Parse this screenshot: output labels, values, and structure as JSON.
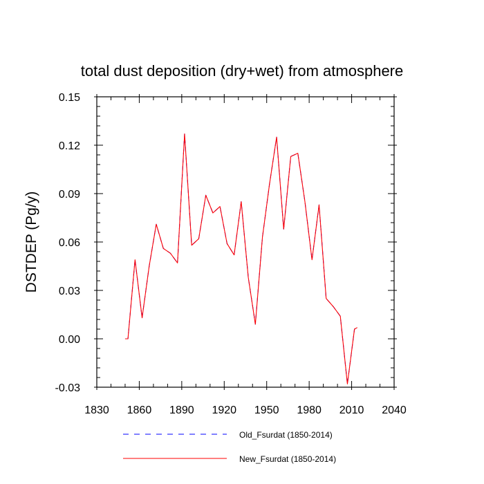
{
  "chart_data": {
    "type": "line",
    "title": "total dust deposition (dry+wet) from atmosphere",
    "xlabel": "",
    "ylabel": "DSTDEP   (Pg/y)",
    "xlim": [
      1830,
      2040
    ],
    "ylim": [
      -0.03,
      0.15
    ],
    "xticks": [
      1830,
      1860,
      1890,
      1920,
      1950,
      1980,
      2010,
      2040
    ],
    "xtick_labels": [
      "1830",
      "1860",
      "1890",
      "1920",
      "1950",
      "1980",
      "2010",
      "2040"
    ],
    "yticks": [
      -0.03,
      0.0,
      0.03,
      0.06,
      0.09,
      0.12,
      0.15
    ],
    "ytick_labels": [
      "-0.03",
      "0.00",
      "0.03",
      "0.06",
      "0.09",
      "0.12",
      "0.15"
    ],
    "x": [
      1850,
      1852,
      1857,
      1862,
      1867,
      1872,
      1877,
      1882,
      1887,
      1892,
      1897,
      1902,
      1907,
      1912,
      1917,
      1922,
      1927,
      1932,
      1937,
      1942,
      1947,
      1952,
      1957,
      1962,
      1967,
      1972,
      1977,
      1982,
      1987,
      1992,
      1997,
      2002,
      2007,
      2012,
      2014
    ],
    "series": [
      {
        "name": "Old_Fsurdat (1850-2014)",
        "color": "#0000ff",
        "dash": "dashed",
        "values": [
          0.0,
          0.0,
          0.049,
          0.013,
          0.045,
          0.071,
          0.056,
          0.053,
          0.047,
          0.127,
          0.058,
          0.062,
          0.089,
          0.078,
          0.082,
          0.059,
          0.052,
          0.085,
          0.038,
          0.009,
          0.063,
          0.096,
          0.125,
          0.068,
          0.113,
          0.115,
          0.085,
          0.049,
          0.083,
          0.025,
          0.02,
          0.014,
          -0.028,
          0.006,
          0.007
        ]
      },
      {
        "name": "New_Fsurdat (1850-2014)",
        "color": "#ff0000",
        "dash": "solid",
        "values": [
          0.0,
          0.0,
          0.049,
          0.013,
          0.045,
          0.071,
          0.056,
          0.053,
          0.047,
          0.127,
          0.058,
          0.062,
          0.089,
          0.078,
          0.082,
          0.059,
          0.052,
          0.085,
          0.038,
          0.009,
          0.063,
          0.096,
          0.125,
          0.068,
          0.113,
          0.115,
          0.085,
          0.049,
          0.083,
          0.025,
          0.02,
          0.014,
          -0.028,
          0.006,
          0.007
        ]
      }
    ],
    "legend_position": "bottom-center"
  }
}
